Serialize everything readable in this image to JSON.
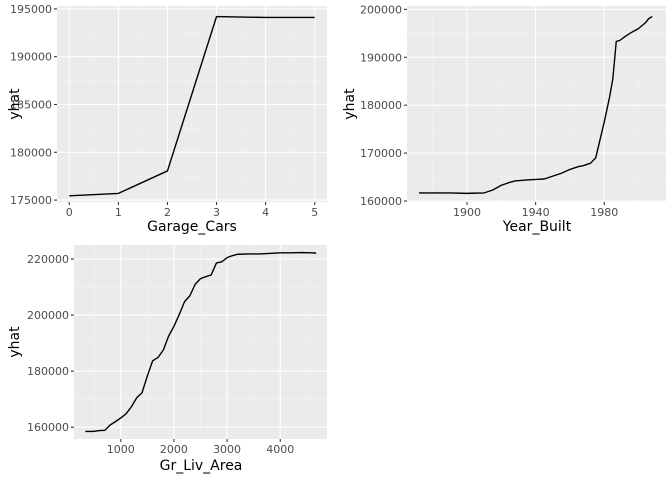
{
  "chart_data": [
    {
      "type": "line",
      "xlabel": "Garage_Cars",
      "ylabel": "yhat",
      "xlim": [
        -0.25,
        5.25
      ],
      "ylim": [
        174800,
        195300
      ],
      "xticks": [
        0,
        1,
        2,
        3,
        4,
        5
      ],
      "xtick_labels": [
        "0",
        "1",
        "2",
        "3",
        "4",
        "5"
      ],
      "yticks": [
        175000,
        180000,
        185000,
        190000,
        195000
      ],
      "ytick_labels": [
        "175000",
        "180000",
        "185000",
        "190000",
        "195000"
      ],
      "grid": true,
      "series": [
        {
          "x": [
            0,
            1,
            2,
            3,
            4,
            5
          ],
          "y": [
            175450,
            175700,
            178050,
            194200,
            194100,
            194100
          ]
        }
      ]
    },
    {
      "type": "line",
      "xlabel": "Year_Built",
      "ylabel": "yhat",
      "xlim": [
        1865,
        2016
      ],
      "ylim": [
        159800,
        200700
      ],
      "xticks": [
        1900,
        1940,
        1980
      ],
      "xtick_labels": [
        "1900",
        "1940",
        "1980"
      ],
      "yticks": [
        160000,
        170000,
        180000,
        190000,
        200000
      ],
      "ytick_labels": [
        "160000",
        "170000",
        "180000",
        "190000",
        "200000"
      ],
      "grid": true,
      "series": [
        {
          "x": [
            1872,
            1880,
            1890,
            1900,
            1905,
            1910,
            1915,
            1920,
            1925,
            1928,
            1935,
            1940,
            1945,
            1950,
            1955,
            1960,
            1965,
            1968,
            1972,
            1975,
            1977,
            1980,
            1983,
            1985,
            1987,
            1989,
            1992,
            1995,
            2000,
            2004,
            2006,
            2008
          ],
          "y": [
            161700,
            161700,
            161700,
            161600,
            161650,
            161700,
            162300,
            163300,
            163900,
            164200,
            164400,
            164500,
            164600,
            165200,
            165800,
            166600,
            167200,
            167400,
            167900,
            169000,
            172000,
            176500,
            181500,
            185500,
            193300,
            193500,
            194300,
            195000,
            196000,
            197200,
            198100,
            198500
          ]
        }
      ]
    },
    {
      "type": "line",
      "xlabel": "Gr_Liv_Area",
      "ylabel": "yhat",
      "xlim": [
        120,
        4880
      ],
      "ylim": [
        155800,
        225000
      ],
      "xticks": [
        1000,
        2000,
        3000,
        4000
      ],
      "xtick_labels": [
        "1000",
        "2000",
        "3000",
        "4000"
      ],
      "yticks": [
        160000,
        180000,
        200000,
        220000
      ],
      "ytick_labels": [
        "160000",
        "180000",
        "200000",
        "220000"
      ],
      "grid": true,
      "series": [
        {
          "x": [
            334,
            480,
            600,
            700,
            800,
            900,
            1000,
            1100,
            1200,
            1300,
            1400,
            1500,
            1600,
            1700,
            1800,
            1900,
            2000,
            2100,
            2200,
            2300,
            2400,
            2500,
            2600,
            2700,
            2800,
            2900,
            3000,
            3100,
            3200,
            3400,
            3600,
            3800,
            4000,
            4200,
            4400,
            4600,
            4676
          ],
          "y": [
            158500,
            158500,
            158800,
            158900,
            160800,
            162000,
            163300,
            164800,
            167300,
            170500,
            172300,
            178300,
            183700,
            184900,
            187500,
            192500,
            196000,
            200200,
            204800,
            206900,
            211000,
            213000,
            213700,
            214300,
            218600,
            219000,
            220500,
            221200,
            221700,
            221800,
            221800,
            222000,
            222200,
            222200,
            222300,
            222200,
            222100
          ]
        }
      ]
    }
  ]
}
